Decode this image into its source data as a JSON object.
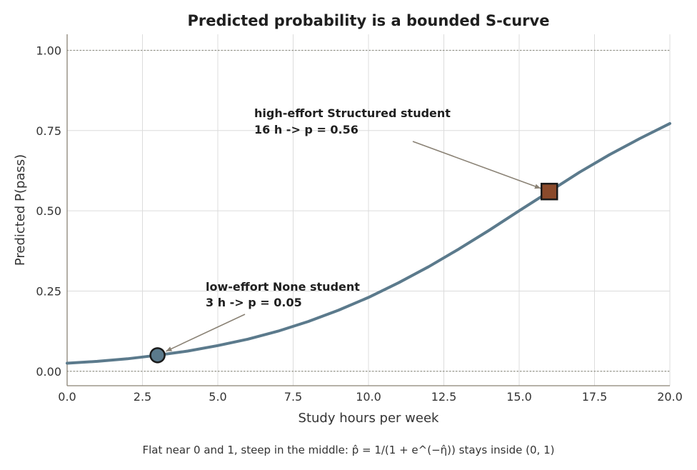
{
  "chart_data": {
    "type": "line",
    "title": "Predicted probability is a bounded S-curve",
    "xlabel": "Study hours per week",
    "ylabel": "Predicted P(pass)",
    "xlim": [
      0,
      20
    ],
    "ylim": [
      -0.045,
      1.05
    ],
    "x_ticks": [
      "0.0",
      "2.5",
      "5.0",
      "7.5",
      "10.0",
      "12.5",
      "15.0",
      "17.5",
      "20.0"
    ],
    "y_ticks": [
      "0.00",
      "0.25",
      "0.50",
      "0.75",
      "1.00"
    ],
    "grid": true,
    "reference_lines": [
      0,
      1
    ],
    "series": [
      {
        "color": "#5b7a8c",
        "x": [
          0,
          1,
          2,
          3,
          4,
          5,
          6,
          7,
          8,
          9,
          10,
          11,
          12,
          13,
          14,
          15,
          16,
          17,
          18,
          19,
          20
        ],
        "y": [
          0.025,
          0.031,
          0.039,
          0.05,
          0.063,
          0.08,
          0.1,
          0.125,
          0.155,
          0.19,
          0.23,
          0.276,
          0.326,
          0.381,
          0.439,
          0.5,
          0.56,
          0.62,
          0.675,
          0.725,
          0.772
        ]
      }
    ],
    "highlights": [
      {
        "x": 3,
        "y": 0.05,
        "marker": "circle",
        "color": "#5b7a8c",
        "label": "low-effort None student",
        "sublabel": "3 h -> p = 0.05"
      },
      {
        "x": 16,
        "y": 0.56,
        "marker": "square",
        "color": "#8b4a2b",
        "label": "high-effort Structured student",
        "sublabel": "16 h -> p = 0.56"
      }
    ],
    "caption": "Flat near 0 and 1, steep in the middle: p̂ = 1/(1 + e^(−η̂)) stays inside (0, 1)"
  },
  "colors": {
    "curve": "#5b7a8c",
    "low_marker": "#5b7a8c",
    "high_marker": "#8b4a2b",
    "arrow": "#8a8275"
  }
}
